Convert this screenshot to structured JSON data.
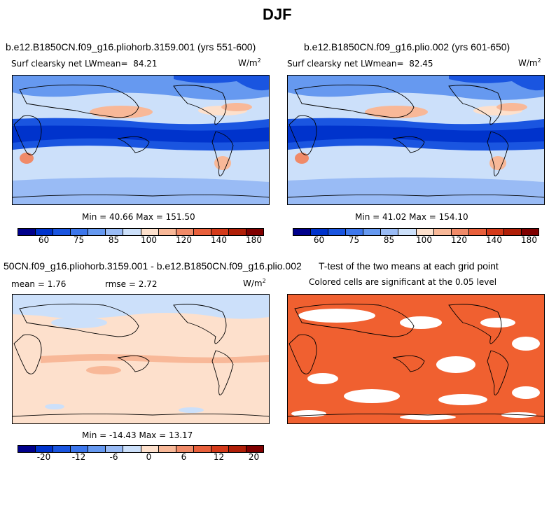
{
  "title": "DJF",
  "panels": {
    "p1": {
      "title": "b.e12.B1850CN.f09_g16.pliohorb.3159.001 (yrs 551-600)",
      "var": "Surf clearsky net LW",
      "mean_label": "mean=",
      "mean": "84.21",
      "units": "W/m",
      "units_exp": "2",
      "minmax": "Min =  40.66 Max = 151.50"
    },
    "p2": {
      "title": "b.e12.B1850CN.f09_g16.plio.002 (yrs 601-650)",
      "var": "Surf clearsky net LW",
      "mean_label": "mean=",
      "mean": "82.45",
      "units": "W/m",
      "units_exp": "2",
      "minmax": "Min =  41.02 Max = 154.10"
    },
    "p3": {
      "title": "50CN.f09_g16.pliohorb.3159.001 - b.e12.B1850CN.f09_g16.plio.002",
      "mean_text": "mean =    1.76",
      "rmse_text": "rmse =    2.72",
      "units": "W/m",
      "units_exp": "2",
      "minmax": "Min = -14.43 Max =  13.17"
    },
    "p4": {
      "title": "T-test of the two means at each grid point",
      "subtitle": "Colored cells are significant at the 0.05 level"
    }
  },
  "colorbars": {
    "abs": {
      "colors": [
        "#00008b",
        "#0033cc",
        "#1a55e0",
        "#3d77ec",
        "#6699f0",
        "#99bbf5",
        "#cce0fa",
        "#fde0cc",
        "#f8b898",
        "#f08a68",
        "#e8603c",
        "#d43a1a",
        "#b01f08",
        "#800000"
      ],
      "labels": [
        "60",
        "75",
        "85",
        "100",
        "120",
        "140",
        "180"
      ]
    },
    "diff": {
      "colors": [
        "#00008b",
        "#0033cc",
        "#1a55e0",
        "#3d77ec",
        "#6699f0",
        "#99bbf5",
        "#cce0fa",
        "#fde0cc",
        "#f8b898",
        "#f08a68",
        "#e8603c",
        "#d43a1a",
        "#b01f08",
        "#800000"
      ],
      "labels": [
        "-20",
        "-12",
        "-6",
        "0",
        "6",
        "12",
        "20"
      ]
    }
  },
  "chart_data": [
    {
      "type": "heatmap",
      "title": "b.e12.B1850CN.f09_g16.pliohorb.3159.001 (yrs 551-600)",
      "variable": "Surf clearsky net LW",
      "units": "W/m^2",
      "mean": 84.21,
      "min": 40.66,
      "max": 151.5,
      "colorbar_levels": [
        60,
        75,
        85,
        100,
        120,
        140,
        180
      ]
    },
    {
      "type": "heatmap",
      "title": "b.e12.B1850CN.f09_g16.plio.002 (yrs 601-650)",
      "variable": "Surf clearsky net LW",
      "units": "W/m^2",
      "mean": 82.45,
      "min": 41.02,
      "max": 154.1,
      "colorbar_levels": [
        60,
        75,
        85,
        100,
        120,
        140,
        180
      ]
    },
    {
      "type": "heatmap",
      "title": "50CN.f09_g16.pliohorb.3159.001 - b.e12.B1850CN.f09_g16.plio.002",
      "units": "W/m^2",
      "mean": 1.76,
      "rmse": 2.72,
      "min": -14.43,
      "max": 13.17,
      "colorbar_levels": [
        -20,
        -12,
        -6,
        0,
        6,
        12,
        20
      ]
    },
    {
      "type": "heatmap",
      "title": "T-test of the two means at each grid point",
      "subtitle": "Colored cells are significant at the 0.05 level",
      "significance_level": 0.05
    }
  ]
}
